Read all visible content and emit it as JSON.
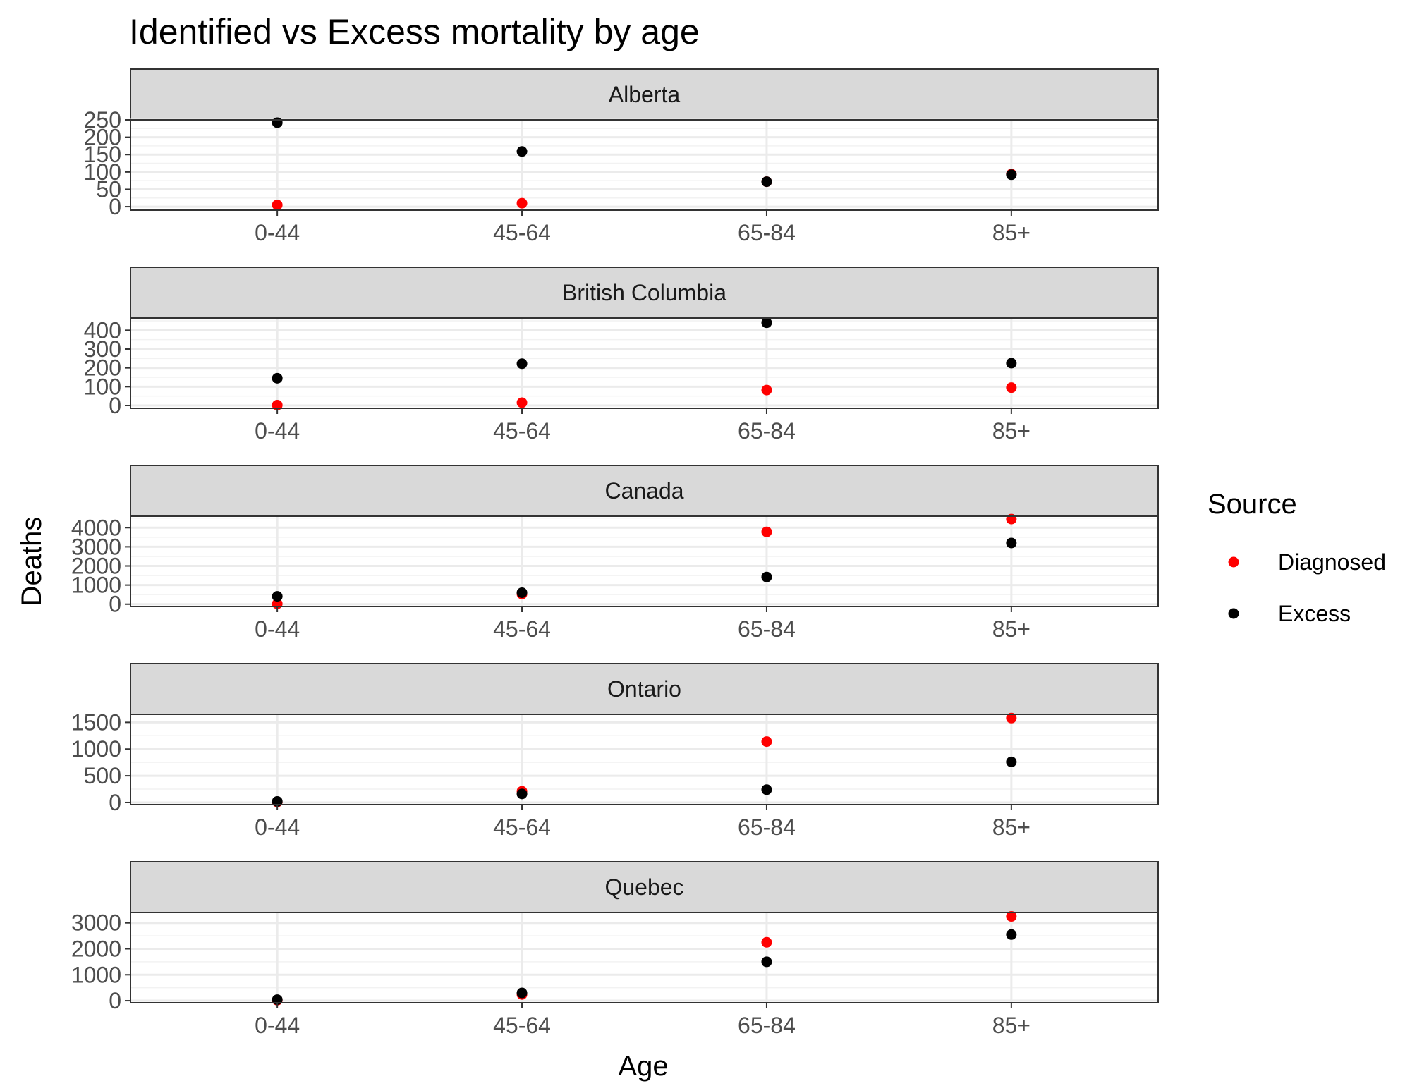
{
  "chart_data": {
    "type": "scatter",
    "title": "Identified vs Excess mortality by age",
    "xlabel": "Age",
    "ylabel": "Deaths",
    "categories": [
      "0-44",
      "45-64",
      "65-84",
      "85+"
    ],
    "legend": {
      "title": "Source",
      "position": "right",
      "items": [
        {
          "name": "Diagnosed",
          "color": "#ff0000"
        },
        {
          "name": "Excess",
          "color": "#000000"
        }
      ]
    },
    "panels": [
      {
        "name": "Alberta",
        "ylim": [
          -10,
          250
        ],
        "yticks": [
          0,
          50,
          100,
          150,
          200,
          250
        ],
        "series": [
          {
            "name": "Diagnosed",
            "values": [
              5,
              10,
              72,
              94
            ]
          },
          {
            "name": "Excess",
            "values": [
              242,
              159,
              72,
              92
            ]
          }
        ]
      },
      {
        "name": "British Columbia",
        "ylim": [
          -15,
          465
        ],
        "yticks": [
          0,
          100,
          200,
          300,
          400
        ],
        "series": [
          {
            "name": "Diagnosed",
            "values": [
              2,
              15,
              82,
              95
            ]
          },
          {
            "name": "Excess",
            "values": [
              145,
              222,
              440,
              225
            ]
          }
        ]
      },
      {
        "name": "Canada",
        "ylim": [
          -120,
          4600
        ],
        "yticks": [
          0,
          1000,
          2000,
          3000,
          4000
        ],
        "series": [
          {
            "name": "Diagnosed",
            "values": [
              20,
              530,
              3780,
              4450
            ]
          },
          {
            "name": "Excess",
            "values": [
              410,
              600,
              1420,
              3200
            ]
          }
        ]
      },
      {
        "name": "Ontario",
        "ylim": [
          -40,
          1650
        ],
        "yticks": [
          0,
          500,
          1000,
          1500
        ],
        "series": [
          {
            "name": "Diagnosed",
            "values": [
              10,
              210,
              1140,
              1580
            ]
          },
          {
            "name": "Excess",
            "values": [
              20,
              160,
              240,
              760
            ]
          }
        ]
      },
      {
        "name": "Quebec",
        "ylim": [
          -80,
          3400
        ],
        "yticks": [
          0,
          1000,
          2000,
          3000
        ],
        "series": [
          {
            "name": "Diagnosed",
            "values": [
              20,
              240,
              2250,
              3250
            ]
          },
          {
            "name": "Excess",
            "values": [
              40,
              300,
              1500,
              2550
            ]
          }
        ]
      }
    ],
    "grid": true
  }
}
